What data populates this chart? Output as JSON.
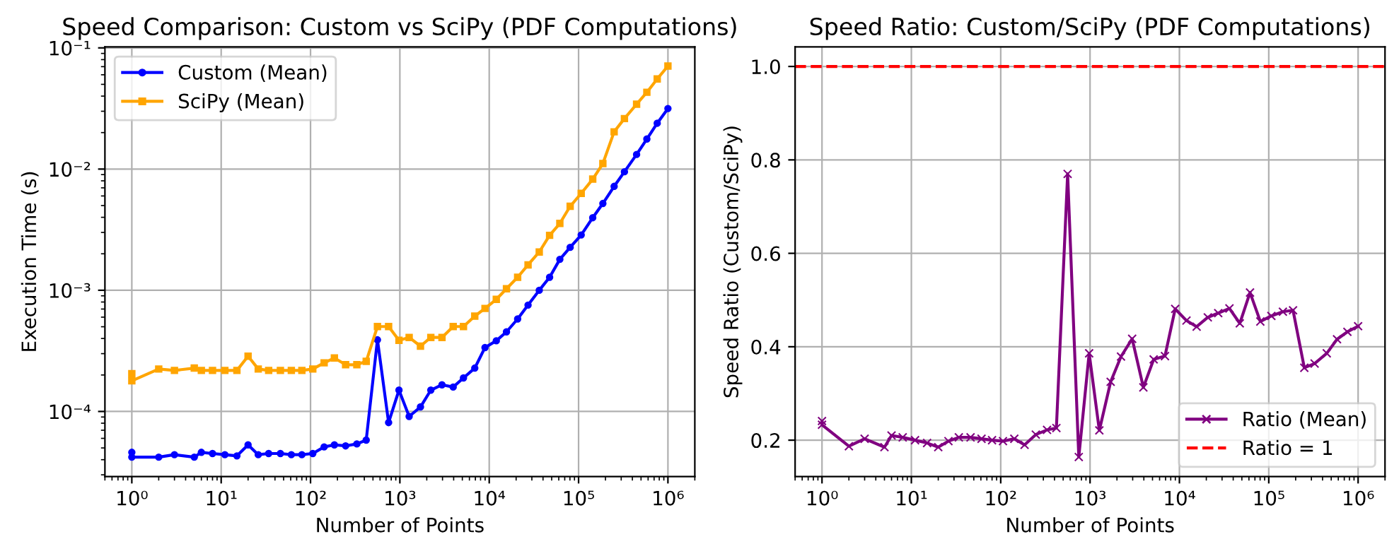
{
  "chart_data": [
    {
      "type": "line",
      "title": "Speed Comparison: Custom vs SciPy (PDF Computations)",
      "xlabel": "Number of Points",
      "ylabel": "Execution Time (s)",
      "log": "xy",
      "grid": true,
      "legend": "top left",
      "x": [
        1,
        1,
        2,
        3,
        5,
        6,
        8,
        11,
        15,
        20,
        26,
        34,
        46,
        61,
        80,
        106,
        142,
        185,
        247,
        330,
        420,
        561,
        748,
        977,
        1270,
        1700,
        2220,
        2960,
        3950,
        5150,
        6890,
        8970,
        12000,
        15600,
        20800,
        27200,
        36300,
        47400,
        61700,
        80500,
        107000,
        144000,
        187000,
        250000,
        326000,
        446000,
        581000,
        759000,
        1000000
      ],
      "xlim": [
        0.5,
        2000000
      ],
      "xticks": [
        {
          "value": 1,
          "label": "10⁰"
        },
        {
          "value": 10,
          "label": "10¹"
        },
        {
          "value": 100,
          "label": "10²"
        },
        {
          "value": 1000,
          "label": "10³"
        },
        {
          "value": 10000,
          "label": "10⁴"
        },
        {
          "value": 100000,
          "label": "10⁵"
        },
        {
          "value": 1000000,
          "label": "10⁶"
        }
      ],
      "ylim": [
        2.9e-05,
        0.102
      ],
      "yticks": [
        {
          "value": 0.0001,
          "label": "10⁻⁴"
        },
        {
          "value": 0.001,
          "label": "10⁻³"
        },
        {
          "value": 0.01,
          "label": "10⁻²"
        },
        {
          "value": 0.1,
          "label": "10⁻¹"
        }
      ],
      "series": [
        {
          "name": "Custom (Mean)",
          "color": "#0000ff",
          "marker": "circle",
          "values": [
            4.6e-05,
            4.2e-05,
            4.2e-05,
            4.4e-05,
            4.2e-05,
            4.6e-05,
            4.5e-05,
            4.4e-05,
            4.3e-05,
            5.3e-05,
            4.4e-05,
            4.5e-05,
            4.5e-05,
            4.4e-05,
            4.4e-05,
            4.5e-05,
            5.1e-05,
            5.3e-05,
            5.2e-05,
            5.4e-05,
            5.8e-05,
            0.00039,
            8.1e-05,
            0.00015,
            9.1e-05,
            0.000109,
            0.00015,
            0.000166,
            0.000159,
            0.000189,
            0.000228,
            0.000337,
            0.000383,
            0.000454,
            0.00058,
            0.000755,
            0.001,
            0.00128,
            0.0018,
            0.00226,
            0.00286,
            0.00397,
            0.0052,
            0.0072,
            0.0095,
            0.0132,
            0.0177,
            0.0239,
            0.0316
          ]
        },
        {
          "name": "SciPy (Mean)",
          "color": "#ffa500",
          "marker": "square",
          "values": [
            0.000205,
            0.000179,
            0.000224,
            0.000218,
            0.000228,
            0.000218,
            0.000218,
            0.000218,
            0.000218,
            0.000286,
            0.000224,
            0.000218,
            0.000218,
            0.000218,
            0.000218,
            0.000224,
            0.000252,
            0.000276,
            0.000243,
            0.000243,
            0.000259,
            0.000502,
            0.000502,
            0.000386,
            0.000408,
            0.000346,
            0.000408,
            0.000408,
            0.000502,
            0.000502,
            0.000612,
            0.000708,
            0.000841,
            0.00103,
            0.00128,
            0.00162,
            0.00207,
            0.00284,
            0.00356,
            0.00493,
            0.0063,
            0.00826,
            0.0111,
            0.0203,
            0.0261,
            0.0343,
            0.043,
            0.0554,
            0.0708
          ]
        }
      ]
    },
    {
      "type": "line",
      "title": "Speed Ratio: Custom/SciPy (PDF Computations)",
      "xlabel": "Number of Points",
      "ylabel": "Speed Ratio (Custom/SciPy)",
      "log": "x",
      "grid": true,
      "legend": "bottom right",
      "x": [
        1,
        1,
        2,
        3,
        5,
        6,
        8,
        11,
        15,
        20,
        26,
        34,
        46,
        61,
        80,
        106,
        142,
        185,
        247,
        330,
        420,
        561,
        748,
        977,
        1270,
        1700,
        2220,
        2960,
        3950,
        5150,
        6890,
        8970,
        12000,
        15600,
        20800,
        27200,
        36300,
        47400,
        61700,
        80500,
        107000,
        144000,
        187000,
        250000,
        326000,
        446000,
        581000,
        759000,
        1000000
      ],
      "xlim": [
        0.5,
        2000000
      ],
      "xticks": [
        {
          "value": 1,
          "label": "10⁰"
        },
        {
          "value": 10,
          "label": "10¹"
        },
        {
          "value": 100,
          "label": "10²"
        },
        {
          "value": 1000,
          "label": "10³"
        },
        {
          "value": 10000,
          "label": "10⁴"
        },
        {
          "value": 100000,
          "label": "10⁵"
        },
        {
          "value": 1000000,
          "label": "10⁶"
        }
      ],
      "ylim": [
        0.122,
        1.042
      ],
      "yticks": [
        {
          "value": 0.2,
          "label": "0.2"
        },
        {
          "value": 0.4,
          "label": "0.4"
        },
        {
          "value": 0.6,
          "label": "0.6"
        },
        {
          "value": 0.8,
          "label": "0.8"
        },
        {
          "value": 1.0,
          "label": "1.0"
        }
      ],
      "ref_lines": [
        {
          "axis": "y",
          "value": 1.0,
          "label": "Ratio = 1",
          "color": "#ff0000",
          "line_style": "dashed"
        }
      ],
      "series": [
        {
          "name": "Ratio (Mean)",
          "color": "#800080",
          "marker": "cross",
          "values": [
            0.241,
            0.233,
            0.187,
            0.203,
            0.185,
            0.21,
            0.206,
            0.2,
            0.194,
            0.185,
            0.198,
            0.206,
            0.206,
            0.203,
            0.2,
            0.198,
            0.203,
            0.19,
            0.212,
            0.222,
            0.226,
            0.77,
            0.164,
            0.386,
            0.221,
            0.325,
            0.379,
            0.417,
            0.313,
            0.373,
            0.38,
            0.481,
            0.456,
            0.443,
            0.463,
            0.472,
            0.482,
            0.45,
            0.516,
            0.454,
            0.466,
            0.475,
            0.478,
            0.355,
            0.364,
            0.386,
            0.416,
            0.432,
            0.444
          ]
        }
      ]
    }
  ]
}
